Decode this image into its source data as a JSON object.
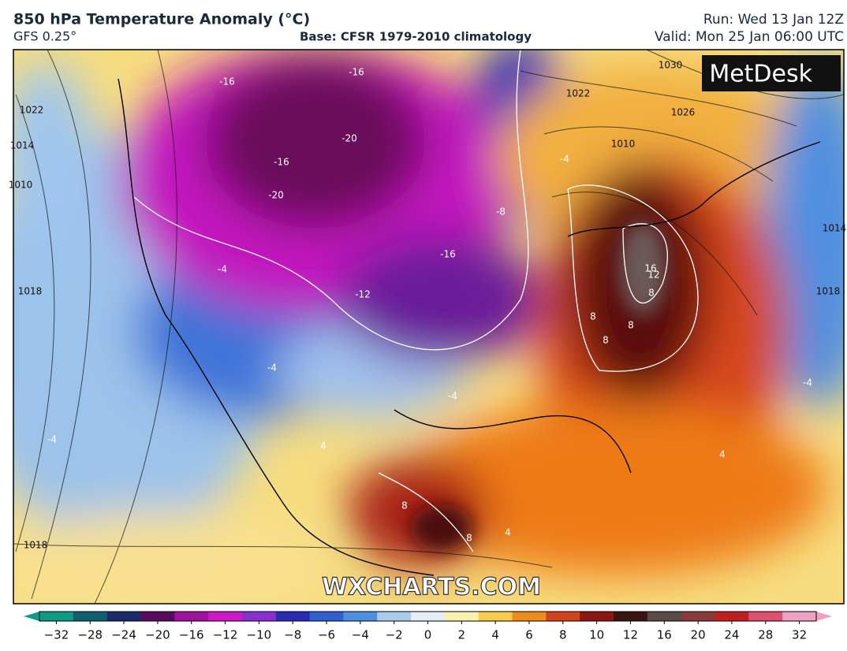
{
  "header": {
    "title": "850 hPa Temperature Anomaly (°C)",
    "model": "GFS 0.25°",
    "base": "Base: CFSR 1979-2010 climatology",
    "run": "Run: Wed 13 Jan 12Z",
    "valid": "Valid: Mon 25 Jan 06:00 UTC"
  },
  "logo": "MetDesk",
  "watermark": "WXCHARTS.COM",
  "map": {
    "labels": [
      "-16",
      "-16",
      "-20",
      "-16",
      "-20",
      "-8",
      "-16",
      "-12",
      "-4",
      "-4",
      "-4",
      "-4",
      "-4",
      "-4",
      "4",
      "8",
      "8",
      "8",
      "8",
      "12",
      "16",
      "8",
      "8",
      "4",
      "4",
      "1022",
      "1022",
      "1026",
      "1030",
      "1010",
      "1014",
      "1010",
      "1018",
      "1018",
      "1014",
      "1018"
    ]
  },
  "colorbar": {
    "ticks": [
      {
        "value": -32,
        "label": "−32"
      },
      {
        "value": -28,
        "label": "−28"
      },
      {
        "value": -24,
        "label": "−24"
      },
      {
        "value": -20,
        "label": "−20"
      },
      {
        "value": -16,
        "label": "−16"
      },
      {
        "value": -12,
        "label": "−12"
      },
      {
        "value": -10,
        "label": "−10"
      },
      {
        "value": -8,
        "label": "−8"
      },
      {
        "value": -6,
        "label": "−6"
      },
      {
        "value": -4,
        "label": "−4"
      },
      {
        "value": -2,
        "label": "−2"
      },
      0,
      2,
      4,
      6,
      8,
      10,
      12,
      16,
      20,
      24,
      28,
      32
    ],
    "colors": [
      "#0b9b86",
      "#0f5f6e",
      "#1a2a6b",
      "#5a0a5c",
      "#a0129e",
      "#d018c8",
      "#8a2ed0",
      "#2a2ab8",
      "#2f5fd0",
      "#4f8fe0",
      "#a8cbee",
      "#e8eef6",
      "#fbf2b0",
      "#f6cc4a",
      "#f08a1a",
      "#d4431a",
      "#8a1810",
      "#3a1410",
      "#5a4a48",
      "#8a3a3a",
      "#c02020",
      "#e05070",
      "#f0a0c0"
    ]
  }
}
